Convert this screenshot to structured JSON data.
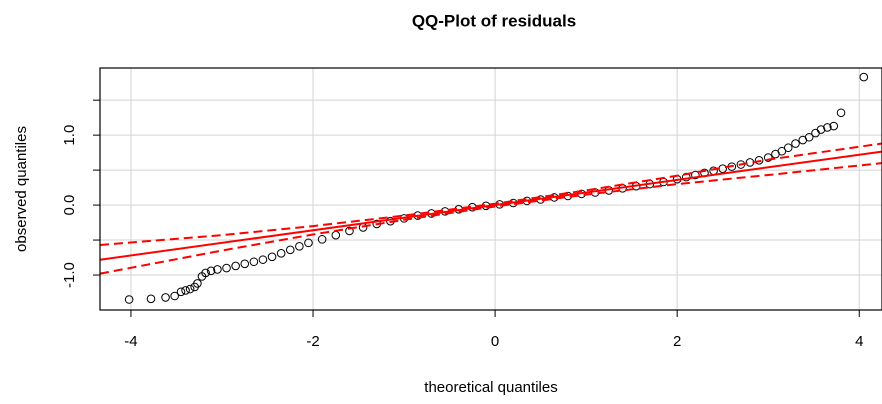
{
  "chart_data": {
    "type": "scatter",
    "title": "QQ-Plot of residuals",
    "xlabel": "theoretical quantiles",
    "ylabel": "observed quantiles",
    "xlim": [
      -4.34,
      4.25
    ],
    "ylim": [
      -1.5,
      1.96
    ],
    "xticks": [
      -4,
      -2,
      0,
      2,
      4
    ],
    "yticks": [
      {
        "value": -1,
        "label": "-1.0"
      },
      {
        "value": 0,
        "label": "0.0"
      },
      {
        "value": 1,
        "label": "1.0"
      }
    ],
    "yminorticks": [
      -0.5,
      0.5,
      1.5
    ],
    "grid": true,
    "point_color": "#000000",
    "x": [
      -4.02,
      -3.78,
      -3.62,
      -3.52,
      -3.45,
      -3.4,
      -3.35,
      -3.3,
      -3.27,
      -3.22,
      -3.18,
      -3.12,
      -3.05,
      -2.95,
      -2.85,
      -2.75,
      -2.65,
      -2.55,
      -2.45,
      -2.35,
      -2.25,
      -2.15,
      -2.05,
      -1.9,
      -1.75,
      -1.6,
      -1.45,
      -1.3,
      -1.15,
      -1.0,
      -0.85,
      -0.7,
      -0.55,
      -0.4,
      -0.25,
      -0.1,
      0.05,
      0.2,
      0.35,
      0.5,
      0.65,
      0.8,
      0.95,
      1.1,
      1.25,
      1.4,
      1.55,
      1.7,
      1.85,
      2.0,
      2.1,
      2.2,
      2.3,
      2.4,
      2.5,
      2.6,
      2.7,
      2.8,
      2.9,
      3.0,
      3.08,
      3.15,
      3.22,
      3.3,
      3.38,
      3.45,
      3.52,
      3.58,
      3.65,
      3.72,
      3.8,
      4.05
    ],
    "values": [
      -1.35,
      -1.34,
      -1.32,
      -1.3,
      -1.24,
      -1.22,
      -1.2,
      -1.17,
      -1.12,
      -1.02,
      -0.97,
      -0.94,
      -0.92,
      -0.9,
      -0.87,
      -0.84,
      -0.81,
      -0.78,
      -0.74,
      -0.69,
      -0.64,
      -0.59,
      -0.54,
      -0.49,
      -0.43,
      -0.37,
      -0.32,
      -0.27,
      -0.23,
      -0.19,
      -0.15,
      -0.12,
      -0.09,
      -0.06,
      -0.03,
      -0.01,
      0.01,
      0.03,
      0.06,
      0.08,
      0.11,
      0.13,
      0.16,
      0.18,
      0.21,
      0.24,
      0.27,
      0.3,
      0.33,
      0.37,
      0.4,
      0.43,
      0.46,
      0.49,
      0.52,
      0.55,
      0.58,
      0.61,
      0.64,
      0.68,
      0.73,
      0.77,
      0.82,
      0.88,
      0.93,
      0.97,
      1.03,
      1.08,
      1.11,
      1.13,
      1.32,
      1.83
    ],
    "reference_line": {
      "intercept": 0,
      "slope": 0.18,
      "color": "#ff0000"
    },
    "bands": {
      "color": "#ff0000",
      "x": [
        -4.34,
        -3,
        -2,
        -1,
        0,
        1,
        2,
        3,
        4.25
      ],
      "upper": [
        -0.57,
        -0.43,
        -0.3,
        -0.15,
        0.02,
        0.21,
        0.42,
        0.65,
        0.88
      ],
      "lower": [
        -0.98,
        -0.65,
        -0.42,
        -0.21,
        -0.02,
        0.15,
        0.3,
        0.43,
        0.6
      ]
    }
  }
}
